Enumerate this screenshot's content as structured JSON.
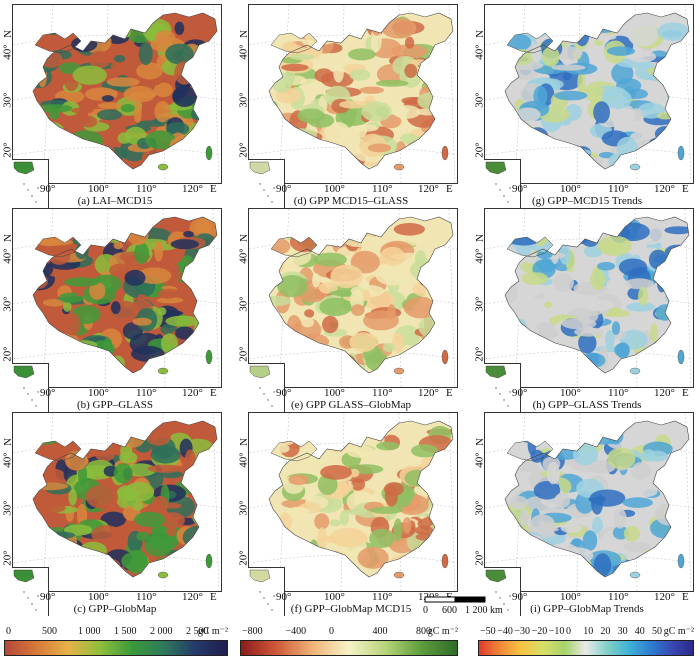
{
  "panels": [
    {
      "id": "a",
      "caption": "(a) LAI–MCD15",
      "palette": "gpp",
      "inset_fill": "#3b8f36"
    },
    {
      "id": "d",
      "caption": "(d) GPP MCD15–GLASS",
      "palette": "diff",
      "inset_fill": "#cfd8a6"
    },
    {
      "id": "g",
      "caption": "(g) GPP–MCD15 Trends",
      "palette": "trend",
      "inset_fill": "#4a8c3a"
    },
    {
      "id": "b",
      "caption": "(b) GPP–GLASS",
      "palette": "gpp",
      "inset_fill": "#3b8f36"
    },
    {
      "id": "e",
      "caption": "(e) GPP GLASS–GlobMap",
      "palette": "diff",
      "inset_fill": "#b6cf86"
    },
    {
      "id": "h",
      "caption": "(h) GPP–GLASS Trends",
      "palette": "trend",
      "inset_fill": "#4a8c3a"
    },
    {
      "id": "c",
      "caption": "(c) GPP–GlobMap",
      "palette": "gpp",
      "inset_fill": "#3b8f36"
    },
    {
      "id": "f",
      "caption": "(f) GPP–GlobMap MCD15",
      "palette": "diff",
      "inset_fill": "#d4d9a0"
    },
    {
      "id": "i",
      "caption": "(i) GPP–GlobMap Trends",
      "palette": "trend",
      "inset_fill": "#4a8c3a"
    }
  ],
  "lat_labels": [
    "40°",
    "30°",
    "20°"
  ],
  "north_label": "N",
  "lon_labels": [
    "90°",
    "100°",
    "110°",
    "120°"
  ],
  "east_label": "E",
  "scale_bar": {
    "labels": [
      "0",
      "600",
      "1 200 km"
    ]
  },
  "colorbars": [
    {
      "id": "gpp",
      "labels": [
        "0",
        "500",
        "1 000",
        "1 500",
        "2 000",
        "2 500"
      ],
      "unit": "gC m⁻²",
      "colors": [
        "#b5473a",
        "#d87a3a",
        "#e6b34a",
        "#8fbe3c",
        "#3c9a3a",
        "#2f7a5a",
        "#243a6a",
        "#1f1f4e"
      ]
    },
    {
      "id": "diff",
      "labels": [
        "−800",
        "−400",
        "0",
        "400",
        "800"
      ],
      "unit": "gC m⁻²",
      "colors": [
        "#8c1d1d",
        "#d05a3a",
        "#f0b47a",
        "#f7f3c7",
        "#b9d47a",
        "#5e9e3e",
        "#2f6b2a"
      ]
    },
    {
      "id": "trend",
      "labels": [
        "−50",
        "−40",
        "−30",
        "−20",
        "−10",
        "0",
        "10",
        "20",
        "30",
        "40",
        "50"
      ],
      "unit": "gC m⁻²",
      "colors": [
        "#e03a2a",
        "#f08a3a",
        "#f5c542",
        "#d8df6a",
        "#a6d36a",
        "#e9e9e9",
        "#7fd0c6",
        "#3fb3d6",
        "#2f7fd0",
        "#3a49b5",
        "#2a2a8a"
      ]
    }
  ]
}
